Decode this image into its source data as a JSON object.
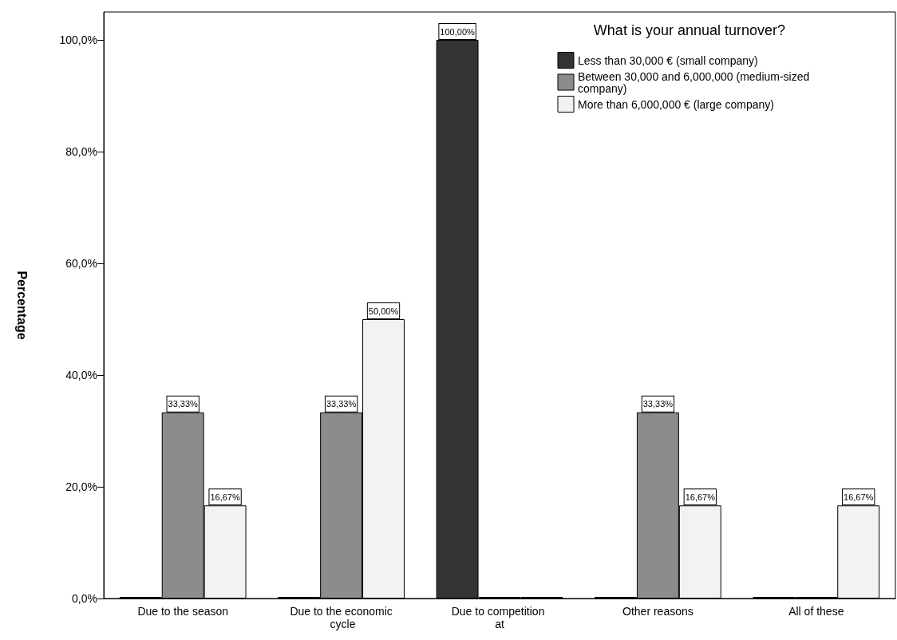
{
  "chart_data": {
    "type": "bar",
    "ylabel": "Percentage",
    "legend_title": "What is your annual turnover?",
    "legend": "top right",
    "categories": [
      "Due to the season",
      "Due to the economic cycle",
      "Due to competition at",
      "Other reasons",
      "All of these"
    ],
    "series": [
      {
        "name": "Less than 30,000 € (small company)",
        "color": "#333333",
        "values": [
          0,
          0,
          100,
          0,
          0
        ],
        "value_labels": [
          null,
          null,
          "100,00%",
          null,
          null
        ]
      },
      {
        "name": "Between 30,000 and 6,000,000 (medium-sized company)",
        "color": "#8c8c8c",
        "values": [
          33.33,
          33.33,
          0,
          33.33,
          0
        ],
        "value_labels": [
          "33,33%",
          "33,33%",
          null,
          "33,33%",
          null
        ]
      },
      {
        "name": "More than 6,000,000 € (large company)",
        "color": "#f2f2f2",
        "values": [
          16.67,
          50,
          0,
          16.67,
          16.67
        ],
        "value_labels": [
          "16,67%",
          "50,00%",
          null,
          "16,67%",
          "16,67%"
        ]
      }
    ],
    "ylim": [
      0,
      105
    ],
    "yticks": [
      {
        "value": 0,
        "label": "0,0%"
      },
      {
        "value": 20,
        "label": "20,0%"
      },
      {
        "value": 40,
        "label": "40,0%"
      },
      {
        "value": 60,
        "label": "60,0%"
      },
      {
        "value": 80,
        "label": "80,0%"
      },
      {
        "value": 100,
        "label": "100,0%"
      }
    ],
    "grid": false
  }
}
